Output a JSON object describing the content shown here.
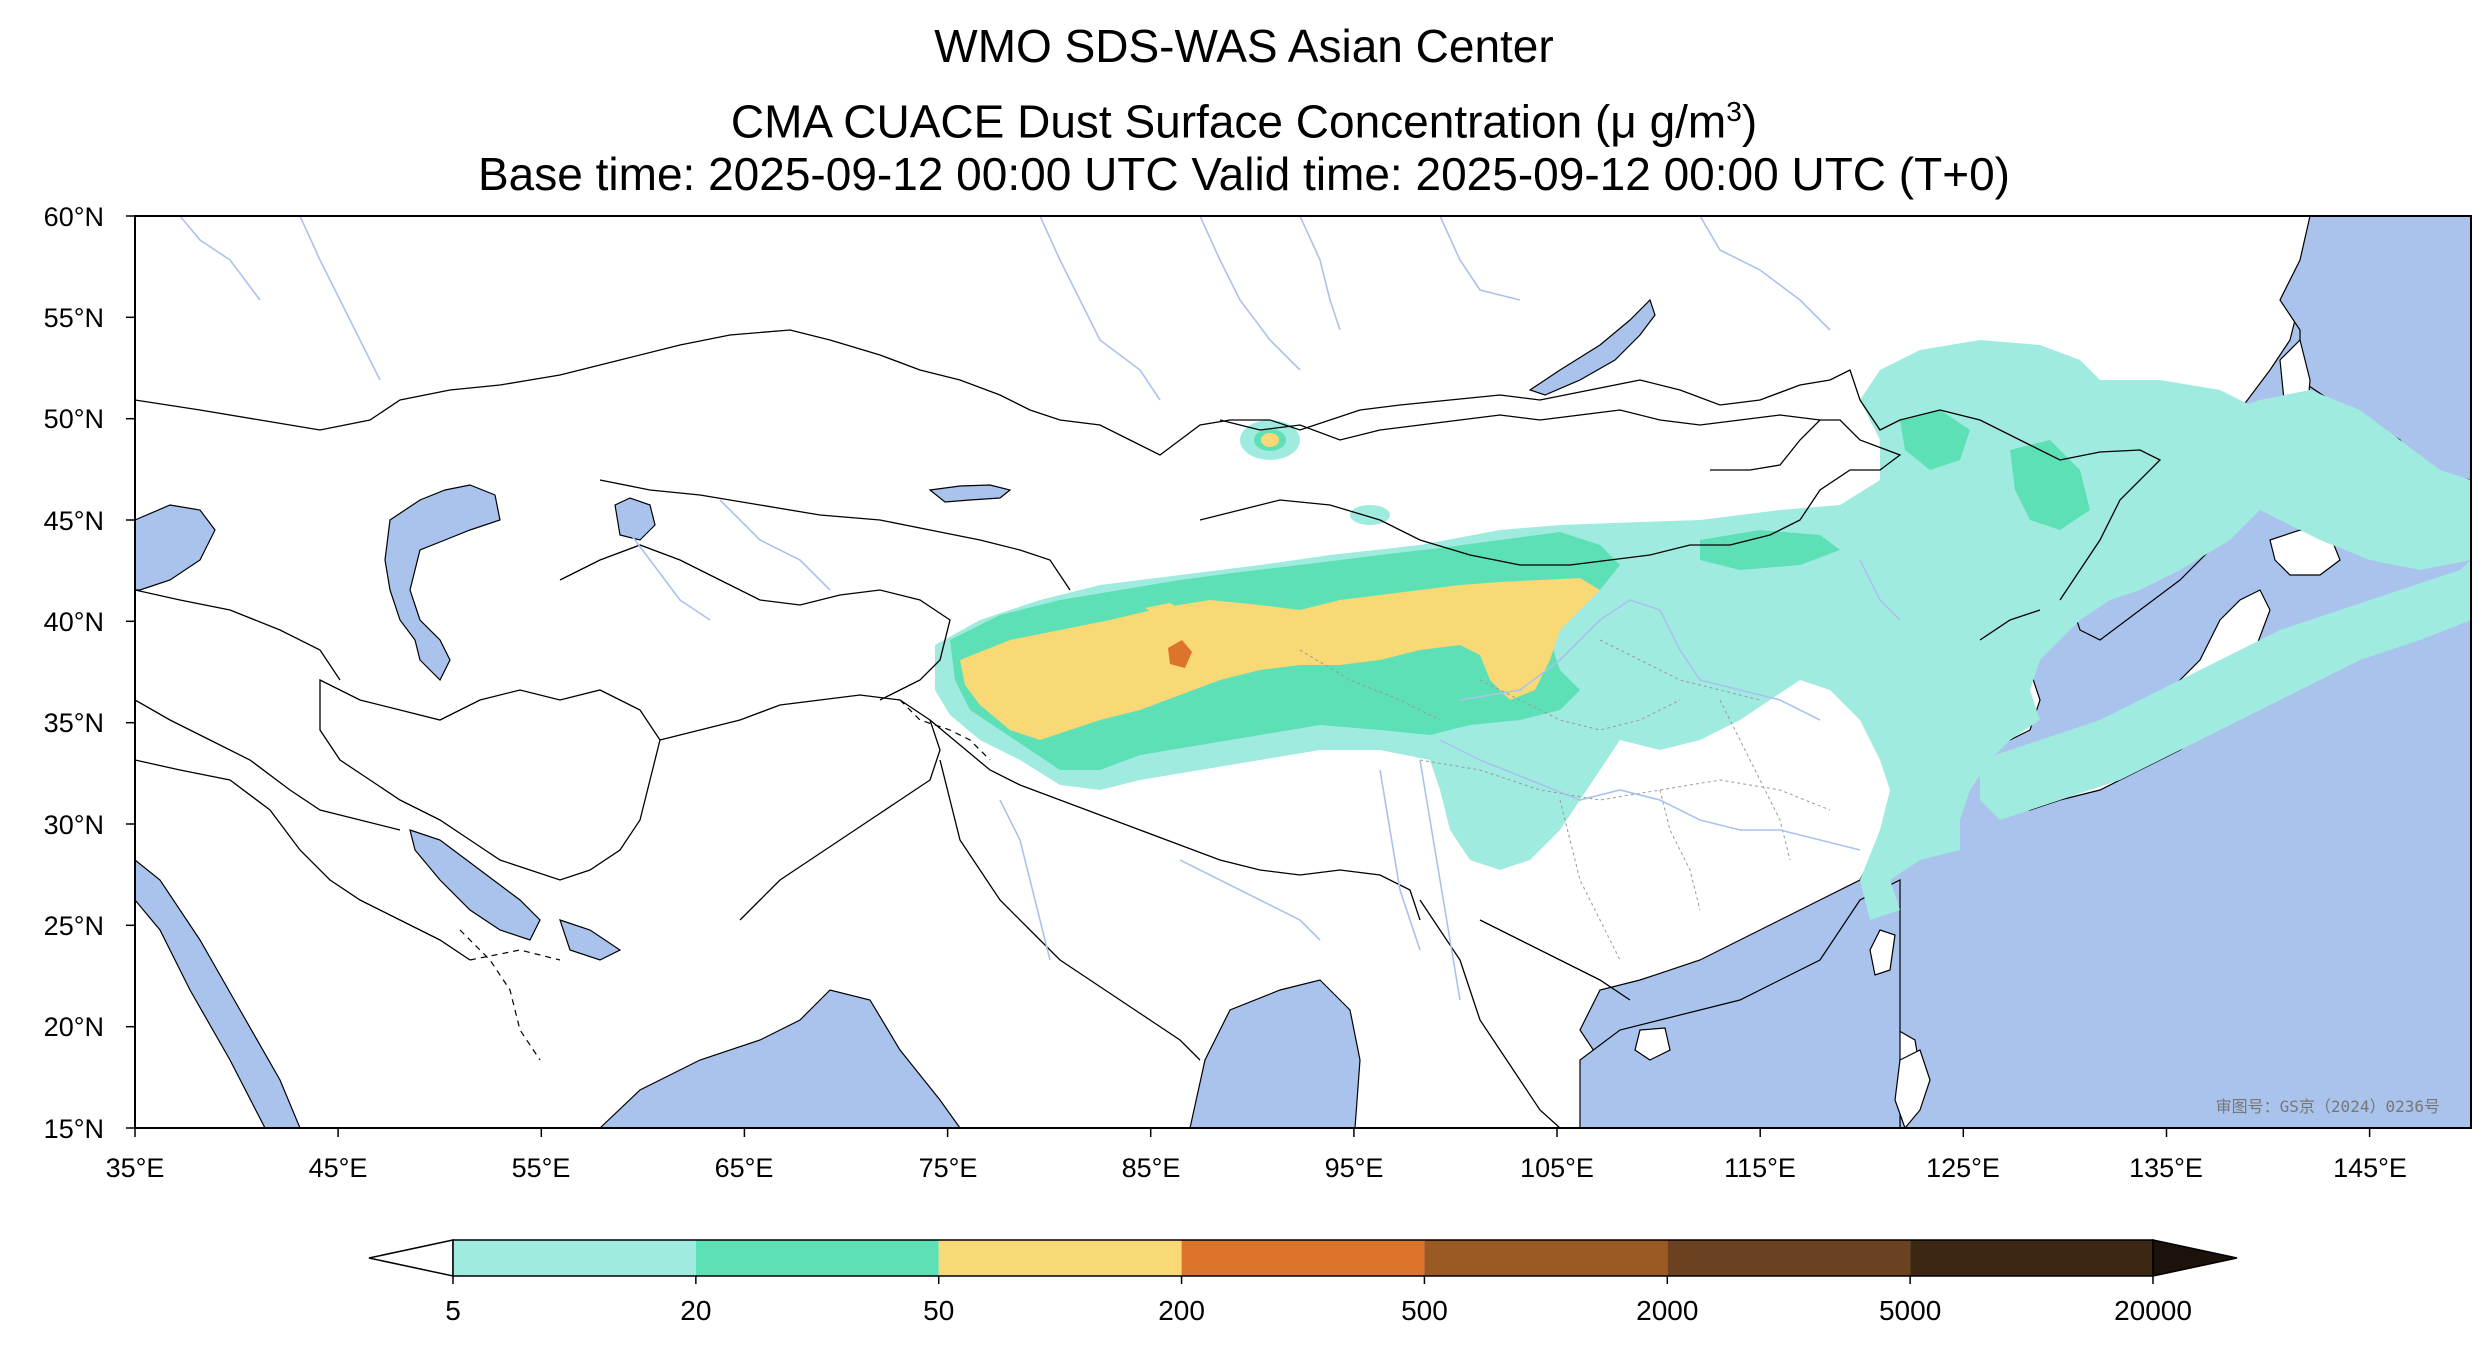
{
  "title": {
    "line1": "WMO SDS-WAS Asian Center",
    "line2_prefix": "CMA CUACE Dust Surface Concentration (μ g/m",
    "line2_sup": "3",
    "line2_suffix": ")",
    "line3": "Base time: 2025-09-12 00:00 UTC Valid time: 2025-09-12 00:00 UTC (T+0)"
  },
  "map": {
    "lat_ticks": [
      "60°N",
      "55°N",
      "50°N",
      "45°N",
      "40°N",
      "35°N",
      "30°N",
      "25°N",
      "20°N",
      "15°N"
    ],
    "lon_ticks": [
      "35°E",
      "45°E",
      "55°E",
      "65°E",
      "75°E",
      "85°E",
      "95°E",
      "105°E",
      "115°E",
      "125°E",
      "135°E",
      "145°E"
    ],
    "extent": {
      "lon_min": 35,
      "lon_max": 150,
      "lat_min": 15,
      "lat_max": 60
    },
    "ocean_color": "#a9c3ec",
    "land_color": "#ffffff",
    "watermark": "审图号：GS京（2024）0236号"
  },
  "colorbar": {
    "levels": [
      "5",
      "20",
      "50",
      "200",
      "500",
      "2000",
      "5000",
      "20000"
    ],
    "colors": [
      "#a0ebe0",
      "#5de0b5",
      "#f9d876",
      "#dc742e",
      "#9b5a24",
      "#6b4120",
      "#3b2712"
    ],
    "under_color": "#ffffff",
    "over_color": "#1c120a"
  }
}
